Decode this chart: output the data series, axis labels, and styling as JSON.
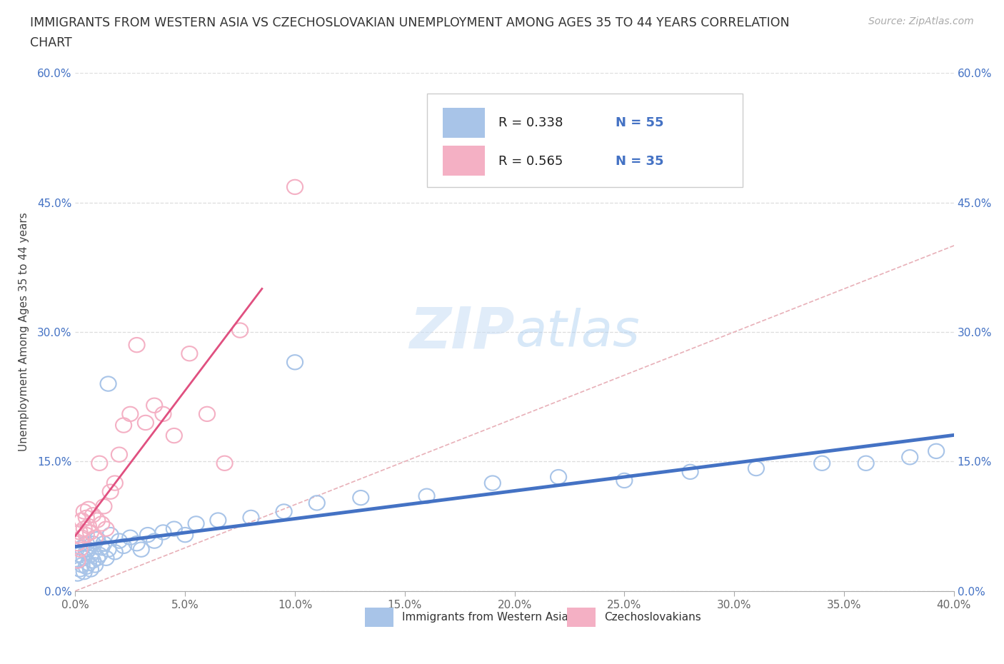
{
  "title_line1": "IMMIGRANTS FROM WESTERN ASIA VS CZECHOSLOVAKIAN UNEMPLOYMENT AMONG AGES 35 TO 44 YEARS CORRELATION",
  "title_line2": "CHART",
  "source": "Source: ZipAtlas.com",
  "R1": "0.338",
  "N1": "55",
  "R2": "0.565",
  "N2": "35",
  "color_blue": "#a8c4e8",
  "color_pink": "#f4b0c4",
  "color_blue_line": "#4472C4",
  "color_pink_line": "#E05080",
  "color_diag": "#e8b0b8",
  "legend_label1": "Immigrants from Western Asia",
  "legend_label2": "Czechoslovakians",
  "xlim": [
    0.0,
    0.4
  ],
  "ylim": [
    0.0,
    0.6
  ],
  "x_ticks": [
    0.0,
    0.05,
    0.1,
    0.15,
    0.2,
    0.25,
    0.3,
    0.35,
    0.4
  ],
  "y_ticks": [
    0.0,
    0.15,
    0.3,
    0.45,
    0.6
  ],
  "blue_x": [
    0.001,
    0.001,
    0.002,
    0.002,
    0.003,
    0.003,
    0.004,
    0.004,
    0.005,
    0.005,
    0.005,
    0.006,
    0.006,
    0.007,
    0.007,
    0.008,
    0.008,
    0.009,
    0.01,
    0.01,
    0.011,
    0.012,
    0.013,
    0.014,
    0.015,
    0.016,
    0.018,
    0.02,
    0.022,
    0.025,
    0.028,
    0.03,
    0.033,
    0.036,
    0.04,
    0.045,
    0.05,
    0.055,
    0.065,
    0.08,
    0.095,
    0.11,
    0.13,
    0.16,
    0.19,
    0.22,
    0.25,
    0.28,
    0.31,
    0.34,
    0.36,
    0.38,
    0.392,
    0.1,
    0.015
  ],
  "blue_y": [
    0.02,
    0.035,
    0.025,
    0.042,
    0.03,
    0.05,
    0.022,
    0.038,
    0.028,
    0.045,
    0.055,
    0.032,
    0.048,
    0.025,
    0.042,
    0.035,
    0.055,
    0.03,
    0.038,
    0.06,
    0.042,
    0.05,
    0.055,
    0.038,
    0.048,
    0.065,
    0.045,
    0.058,
    0.052,
    0.062,
    0.055,
    0.048,
    0.065,
    0.058,
    0.068,
    0.072,
    0.065,
    0.078,
    0.082,
    0.085,
    0.092,
    0.102,
    0.108,
    0.11,
    0.125,
    0.132,
    0.128,
    0.138,
    0.142,
    0.148,
    0.148,
    0.155,
    0.162,
    0.265,
    0.24
  ],
  "pink_x": [
    0.001,
    0.001,
    0.002,
    0.002,
    0.003,
    0.003,
    0.004,
    0.004,
    0.005,
    0.005,
    0.006,
    0.006,
    0.007,
    0.008,
    0.009,
    0.01,
    0.011,
    0.012,
    0.013,
    0.014,
    0.016,
    0.018,
    0.02,
    0.022,
    0.025,
    0.028,
    0.032,
    0.036,
    0.04,
    0.045,
    0.052,
    0.06,
    0.068,
    0.075,
    0.1
  ],
  "pink_y": [
    0.035,
    0.055,
    0.048,
    0.068,
    0.062,
    0.082,
    0.072,
    0.092,
    0.065,
    0.085,
    0.075,
    0.095,
    0.068,
    0.088,
    0.062,
    0.082,
    0.148,
    0.078,
    0.098,
    0.072,
    0.115,
    0.125,
    0.158,
    0.192,
    0.205,
    0.285,
    0.195,
    0.215,
    0.205,
    0.18,
    0.275,
    0.205,
    0.148,
    0.302,
    0.468
  ]
}
